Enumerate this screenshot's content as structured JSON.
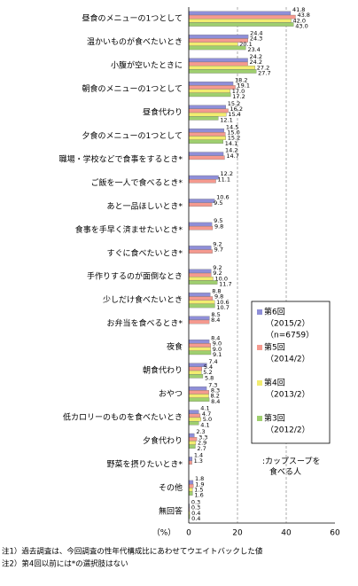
{
  "chart_data": {
    "type": "barh",
    "categories": [
      "昼食のメニューの1つとして",
      "温かいものが食べたいとき",
      "小腹が空いたときに",
      "朝食のメニューの1つとして",
      "昼食代わり",
      "夕食のメニューの1つとして",
      "職場・学校などで食事をするとき*",
      "ご飯を一人で食べるとき*",
      "あと一品ほしいとき*",
      "食事を手早く済ませたいとき*",
      "すぐに食べたいとき*",
      "手作りするのが面倒なとき",
      "少しだけ食べたいとき",
      "お弁当を食べるとき*",
      "夜食",
      "朝食代わり",
      "おやつ",
      "低カロリーのものを食べたいとき",
      "夕食代わり",
      "野菜を摂りたいとき*",
      "その他",
      "無回答"
    ],
    "series": [
      {
        "name": "第6回",
        "period": "（2015/2）",
        "n": "（n=6759）",
        "color": "#8f8fd8",
        "values": [
          41.8,
          24.4,
          24.2,
          18.2,
          15.2,
          14.5,
          14.2,
          12.2,
          10.6,
          9.5,
          9.2,
          9.2,
          8.8,
          8.5,
          8.4,
          7.4,
          7.3,
          4.1,
          2.3,
          1.4,
          1.8,
          0.3
        ],
        "value_labels": [
          "41.8",
          "24.4",
          "24.2",
          "18.2",
          "15.2",
          "14.5",
          "14.2",
          "12.2",
          "10.6",
          "9.5",
          "9.2",
          "9.2",
          "8.8",
          "8.5",
          "8.4",
          "7.4",
          "7.3",
          "4.1",
          "2.3",
          "1.4",
          "1.8",
          "0.3"
        ]
      },
      {
        "name": "第5回",
        "period": "（2014/2）",
        "color": "#f59a8f",
        "values": [
          43.8,
          24.3,
          24.2,
          19.1,
          16.2,
          15.0,
          14.7,
          11.1,
          9.5,
          9.8,
          9.7,
          9.2,
          9.8,
          8.4,
          9.0,
          5.4,
          8.3,
          4.7,
          3.3,
          1.3,
          1.9,
          0.3
        ],
        "value_labels": [
          "43.8",
          "24.3",
          "24.2",
          "19.1",
          "16.2",
          "15.0",
          "14.7",
          "11.1",
          "9.5",
          "9.8",
          "9.7",
          "9.2",
          "9.8",
          "8.4",
          "9.0",
          "5.4",
          "8.3",
          "4.7",
          "3.3",
          "1.3",
          "1.9",
          "0.3"
        ]
      },
      {
        "name": "第4回",
        "period": "（2013/2）",
        "color": "#f2ec70",
        "values": [
          42.0,
          20.1,
          27.2,
          17.0,
          15.4,
          15.2,
          null,
          null,
          null,
          null,
          null,
          10.0,
          10.6,
          null,
          9.0,
          5.2,
          8.2,
          5.0,
          2.9,
          null,
          1.5,
          0.4
        ],
        "value_labels": [
          "42.0",
          "20.1",
          "27.2",
          "17.0",
          "15.4",
          "15.2",
          null,
          null,
          null,
          null,
          null,
          "10.0",
          "10.6",
          null,
          "9.0",
          "5.2",
          "8.2",
          "5.0",
          "2.9",
          null,
          "1.5",
          "0.4"
        ]
      },
      {
        "name": "第3回",
        "period": "（2012/2）",
        "color": "#9fcf6f",
        "values": [
          43.0,
          23.4,
          27.7,
          17.2,
          12.1,
          14.1,
          null,
          null,
          null,
          null,
          null,
          11.7,
          10.7,
          null,
          9.1,
          5.8,
          8.4,
          4.1,
          2.7,
          null,
          1.6,
          0.4
        ],
        "value_labels": [
          "43.0",
          "23.4",
          "27.7",
          "17.2",
          "12.1",
          "14.1",
          null,
          null,
          null,
          null,
          null,
          "11.7",
          "10.7",
          null,
          "9.1",
          "5.8",
          "8.4",
          "4.1",
          "2.7",
          null,
          "1.6",
          "0.4"
        ]
      }
    ],
    "xlim": [
      0,
      60
    ],
    "xticks": [
      0,
      20,
      40,
      60
    ],
    "xlabel": "（%）",
    "grid": true,
    "annotation": ":カップスープを\n食べる人",
    "notes": [
      "注1）過去調査は、今回調査の性年代構成比にあわせてウエイトバックした値",
      "注2）第4回以前には*の選択肢はない"
    ]
  }
}
